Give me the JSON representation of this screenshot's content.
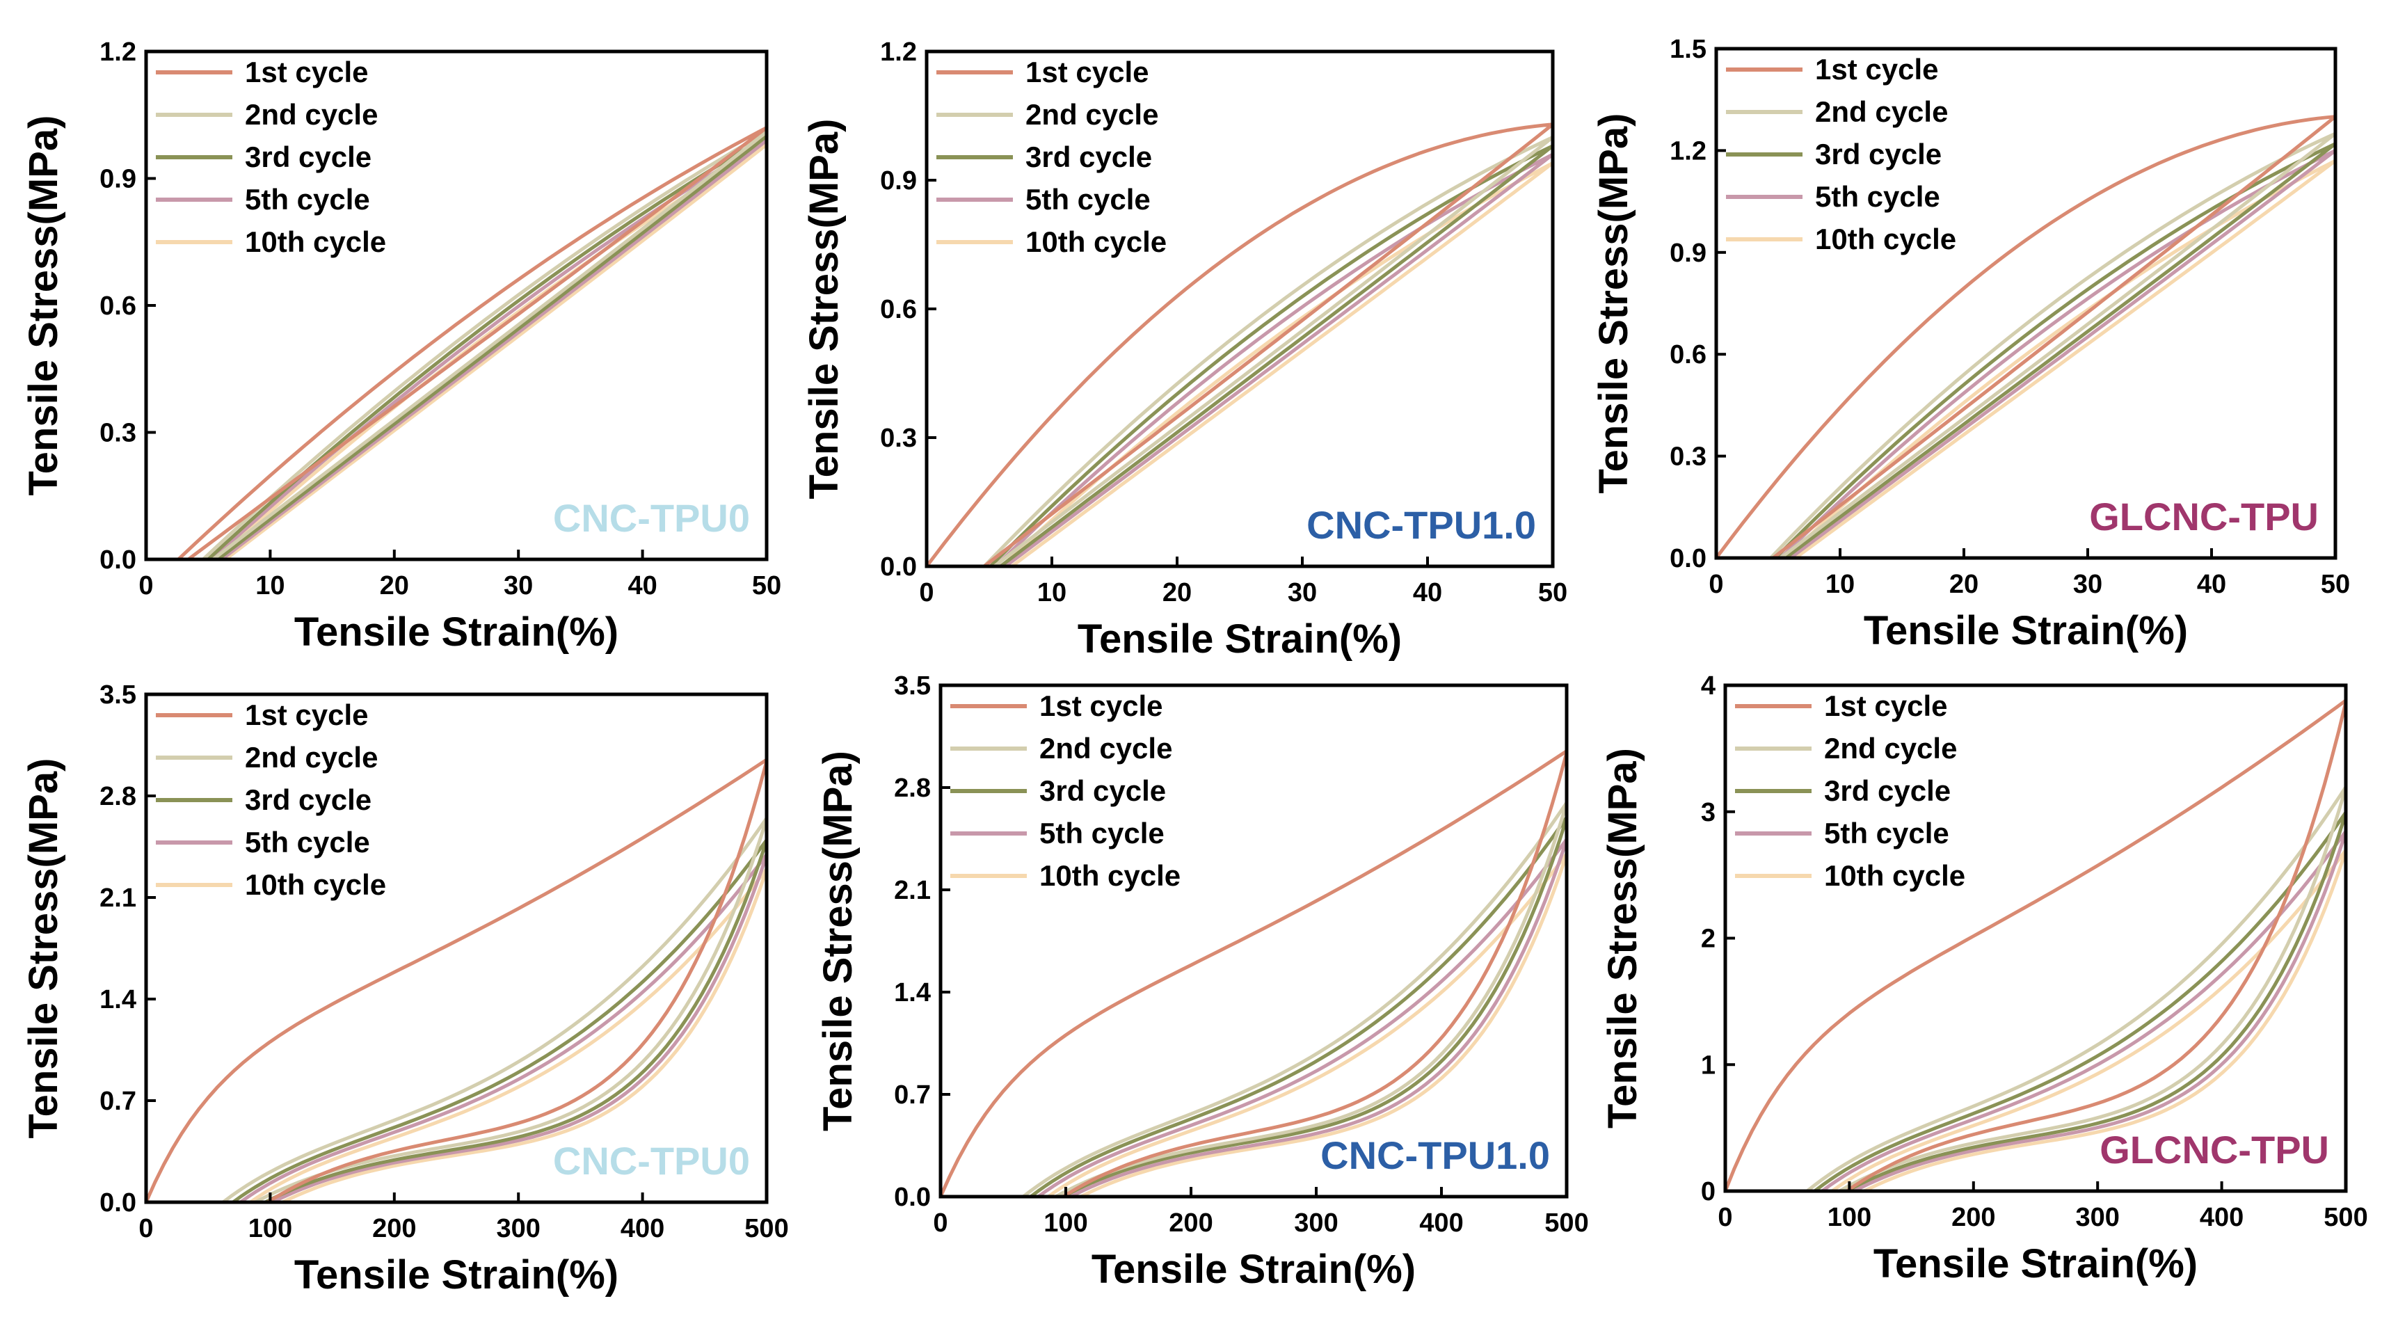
{
  "colors": {
    "1st cycle": "#d98a72",
    "2nd cycle": "#d3ceae",
    "3rd cycle": "#8a9256",
    "5th cycle": "#c898aa",
    "10th cycle": "#f6d8ae",
    "tag_CNC-TPU0": "#b6dde8",
    "tag_CNC-TPU1.0": "#2c5fa6",
    "tag_GLCNC-TPU": "#a0366c"
  },
  "chart_data": [
    {
      "type": "line",
      "sample": "CNC-TPU0",
      "tag_color": "#b6dde8",
      "xlabel": "Tensile Strain(%)",
      "ylabel": "Tensile Stress(MPa)",
      "xlim": [
        0,
        50
      ],
      "ylim": [
        0,
        1.2
      ],
      "xticks": [
        0,
        10,
        20,
        30,
        40,
        50
      ],
      "yticks": [
        0.0,
        0.3,
        0.6,
        0.9,
        1.2
      ],
      "xtick_labels": [
        "0",
        "10",
        "20",
        "30",
        "40",
        "50"
      ],
      "ytick_labels": [
        "0.0",
        "0.3",
        "0.6",
        "0.9",
        "1.2"
      ],
      "legend": [
        "1st cycle",
        "2nd cycle",
        "3rd cycle",
        "5th cycle",
        "10th cycle"
      ],
      "series": [
        {
          "name": "1st cycle",
          "start": 2.6,
          "peak": 1.02,
          "load_curv": 0.18,
          "unload_curv": 0.22
        },
        {
          "name": "2nd cycle",
          "start": 4.6,
          "peak": 1.01,
          "load_curv": 0.15,
          "unload_curv": 0.22
        },
        {
          "name": "3rd cycle",
          "start": 5.0,
          "peak": 1.0,
          "load_curv": 0.14,
          "unload_curv": 0.21
        },
        {
          "name": "5th cycle",
          "start": 5.3,
          "peak": 0.99,
          "load_curv": 0.13,
          "unload_curv": 0.21
        },
        {
          "name": "10th cycle",
          "start": 5.6,
          "peak": 0.98,
          "load_curv": 0.12,
          "unload_curv": 0.2
        }
      ]
    },
    {
      "type": "line",
      "sample": "CNC-TPU1.0",
      "tag_color": "#2c5fa6",
      "xlabel": "Tensile Strain(%)",
      "ylabel": "Tensile Stress(MPa)",
      "xlim": [
        0,
        50
      ],
      "ylim": [
        0,
        1.2
      ],
      "xticks": [
        0,
        10,
        20,
        30,
        40,
        50
      ],
      "yticks": [
        0.0,
        0.3,
        0.6,
        0.9,
        1.2
      ],
      "xtick_labels": [
        "0",
        "10",
        "20",
        "30",
        "40",
        "50"
      ],
      "ytick_labels": [
        "0.0",
        "0.3",
        "0.6",
        "0.9",
        "1.2"
      ],
      "legend": [
        "1st cycle",
        "2nd cycle",
        "3rd cycle",
        "5th cycle",
        "10th cycle"
      ],
      "series": [
        {
          "name": "1st cycle",
          "start": 0.0,
          "peak": 1.03,
          "load_curv": 0.55,
          "unload_curv": 0.3
        },
        {
          "name": "2nd cycle",
          "start": 4.6,
          "peak": 1.0,
          "load_curv": 0.24,
          "unload_curv": 0.28
        },
        {
          "name": "3rd cycle",
          "start": 5.1,
          "peak": 0.98,
          "load_curv": 0.22,
          "unload_curv": 0.27
        },
        {
          "name": "5th cycle",
          "start": 5.5,
          "peak": 0.96,
          "load_curv": 0.2,
          "unload_curv": 0.26
        },
        {
          "name": "10th cycle",
          "start": 6.0,
          "peak": 0.94,
          "load_curv": 0.18,
          "unload_curv": 0.25
        }
      ]
    },
    {
      "type": "line",
      "sample": "GLCNC-TPU",
      "tag_color": "#a0366c",
      "xlabel": "Tensile Strain(%)",
      "ylabel": "Tensile Stress(MPa)",
      "xlim": [
        0,
        50
      ],
      "ylim": [
        0,
        1.5
      ],
      "xticks": [
        0,
        10,
        20,
        30,
        40,
        50
      ],
      "yticks": [
        0.0,
        0.3,
        0.6,
        0.9,
        1.2,
        1.5
      ],
      "xtick_labels": [
        "0",
        "10",
        "20",
        "30",
        "40",
        "50"
      ],
      "ytick_labels": [
        "0.0",
        "0.3",
        "0.6",
        "0.9",
        "1.2",
        "1.5"
      ],
      "legend": [
        "1st cycle",
        "2nd cycle",
        "3rd cycle",
        "5th cycle",
        "10th cycle"
      ],
      "series": [
        {
          "name": "1st cycle",
          "start": 0.0,
          "peak": 1.3,
          "load_curv": 0.55,
          "unload_curv": 0.3
        },
        {
          "name": "2nd cycle",
          "start": 4.4,
          "peak": 1.25,
          "load_curv": 0.25,
          "unload_curv": 0.28
        },
        {
          "name": "3rd cycle",
          "start": 4.8,
          "peak": 1.22,
          "load_curv": 0.23,
          "unload_curv": 0.27
        },
        {
          "name": "5th cycle",
          "start": 5.2,
          "peak": 1.2,
          "load_curv": 0.21,
          "unload_curv": 0.26
        },
        {
          "name": "10th cycle",
          "start": 5.6,
          "peak": 1.17,
          "load_curv": 0.19,
          "unload_curv": 0.25
        }
      ]
    },
    {
      "type": "line",
      "sample": "CNC-TPU0",
      "tag_color": "#b6dde8",
      "xlabel": "Tensile Strain(%)",
      "ylabel": "Tensile Stress(MPa)",
      "xlim": [
        0,
        500
      ],
      "ylim": [
        0,
        3.5
      ],
      "xticks": [
        0,
        100,
        200,
        300,
        400,
        500
      ],
      "yticks": [
        0.0,
        0.7,
        1.4,
        2.1,
        2.8,
        3.5
      ],
      "xtick_labels": [
        "0",
        "100",
        "200",
        "300",
        "400",
        "500"
      ],
      "ytick_labels": [
        "0.0",
        "0.7",
        "1.4",
        "2.1",
        "2.8",
        "3.5"
      ],
      "legend": [
        "1st cycle",
        "2nd cycle",
        "3rd cycle",
        "5th cycle",
        "10th cycle"
      ],
      "series": [
        {
          "name": "1st cycle",
          "start": 0,
          "peak": 3.05,
          "large": true
        },
        {
          "name": "2nd cycle",
          "start": 62,
          "peak": 2.65,
          "large": true
        },
        {
          "name": "3rd cycle",
          "start": 70,
          "peak": 2.5,
          "large": true
        },
        {
          "name": "5th cycle",
          "start": 76,
          "peak": 2.4,
          "large": true
        },
        {
          "name": "10th cycle",
          "start": 84,
          "peak": 2.3,
          "large": true
        }
      ]
    },
    {
      "type": "line",
      "sample": "CNC-TPU1.0",
      "tag_color": "#2c5fa6",
      "xlabel": "Tensile Strain(%)",
      "ylabel": "Tensile Stress(MPa)",
      "xlim": [
        0,
        500
      ],
      "ylim": [
        0,
        3.5
      ],
      "xticks": [
        0,
        100,
        200,
        300,
        400,
        500
      ],
      "yticks": [
        0.0,
        0.7,
        1.4,
        2.1,
        2.8,
        3.5
      ],
      "xtick_labels": [
        "0",
        "100",
        "200",
        "300",
        "400",
        "500"
      ],
      "ytick_labels": [
        "0.0",
        "0.7",
        "1.4",
        "2.1",
        "2.8",
        "3.5"
      ],
      "legend": [
        "1st cycle",
        "2nd cycle",
        "3rd cycle",
        "5th cycle",
        "10th cycle"
      ],
      "series": [
        {
          "name": "1st cycle",
          "start": 0,
          "peak": 3.05,
          "large": true
        },
        {
          "name": "2nd cycle",
          "start": 66,
          "peak": 2.7,
          "large": true
        },
        {
          "name": "3rd cycle",
          "start": 72,
          "peak": 2.6,
          "large": true
        },
        {
          "name": "5th cycle",
          "start": 78,
          "peak": 2.45,
          "large": true
        },
        {
          "name": "10th cycle",
          "start": 86,
          "peak": 2.35,
          "large": true
        }
      ]
    },
    {
      "type": "line",
      "sample": "GLCNC-TPU",
      "tag_color": "#a0366c",
      "xlabel": "Tensile Strain(%)",
      "ylabel": "Tensile Stress(MPa)",
      "xlim": [
        0,
        500
      ],
      "ylim": [
        0,
        4
      ],
      "xticks": [
        0,
        100,
        200,
        300,
        400,
        500
      ],
      "yticks": [
        0,
        1,
        2,
        3,
        4
      ],
      "xtick_labels": [
        "0",
        "100",
        "200",
        "300",
        "400",
        "500"
      ],
      "ytick_labels": [
        "0",
        "1",
        "2",
        "3",
        "4"
      ],
      "legend": [
        "1st cycle",
        "2nd cycle",
        "3rd cycle",
        "5th cycle",
        "10th cycle"
      ],
      "series": [
        {
          "name": "1st cycle",
          "start": 0,
          "peak": 3.88,
          "large": true
        },
        {
          "name": "2nd cycle",
          "start": 66,
          "peak": 3.2,
          "large": true
        },
        {
          "name": "3rd cycle",
          "start": 72,
          "peak": 3.0,
          "large": true
        },
        {
          "name": "5th cycle",
          "start": 78,
          "peak": 2.85,
          "large": true
        },
        {
          "name": "10th cycle",
          "start": 86,
          "peak": 2.7,
          "large": true
        }
      ]
    }
  ]
}
